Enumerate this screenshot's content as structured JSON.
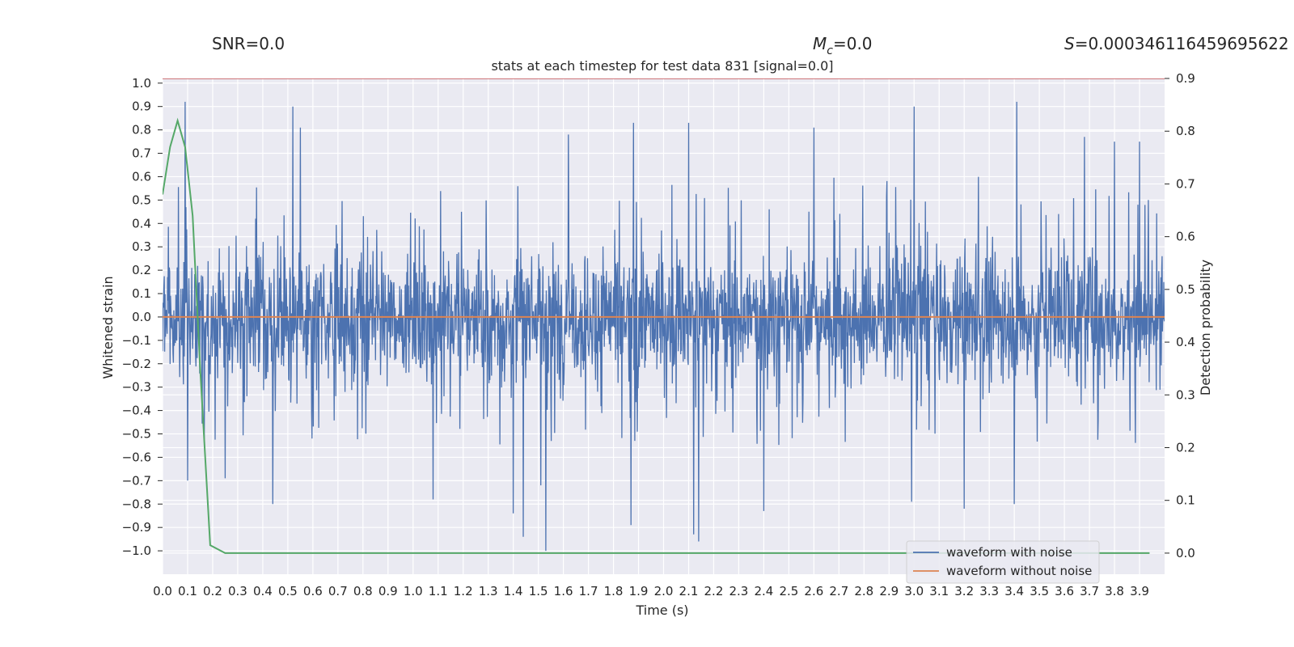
{
  "header": {
    "snr": "SNR=0.0",
    "mc_sym": "M",
    "mc_sub": "c",
    "mc_val": "=0.0",
    "s_sym": "S",
    "s_val": "=0.000346116459695622"
  },
  "chart_data": {
    "type": "line",
    "title": "stats at each timestep for test data 831 [signal=0.0]",
    "xlabel": "Time (s)",
    "ylabel": "Whitened strain",
    "y2label": "Detection probability",
    "xlim": [
      0.0,
      4.0
    ],
    "ylim": [
      -1.1,
      1.02
    ],
    "y2lim": [
      -0.04,
      0.9
    ],
    "xticks": [
      "0.0",
      "0.1",
      "0.2",
      "0.3",
      "0.4",
      "0.5",
      "0.6",
      "0.7",
      "0.8",
      "0.9",
      "1.0",
      "1.1",
      "1.2",
      "1.3",
      "1.4",
      "1.5",
      "1.6",
      "1.7",
      "1.8",
      "1.9",
      "2.0",
      "2.1",
      "2.2",
      "2.3",
      "2.4",
      "2.5",
      "2.6",
      "2.7",
      "2.8",
      "2.9",
      "3.0",
      "3.1",
      "3.2",
      "3.3",
      "3.4",
      "3.5",
      "3.6",
      "3.7",
      "3.8",
      "3.9"
    ],
    "yticks": [
      "1.0",
      "0.9",
      "0.8",
      "0.7",
      "0.6",
      "0.5",
      "0.4",
      "0.3",
      "0.2",
      "0.1",
      "0.0",
      "−0.1",
      "−0.2",
      "−0.3",
      "−0.4",
      "−0.5",
      "−0.6",
      "−0.7",
      "−0.8",
      "−0.9",
      "−1.0"
    ],
    "y2ticks": [
      "0.9",
      "0.8",
      "0.7",
      "0.6",
      "0.5",
      "0.4",
      "0.3",
      "0.2",
      "0.1",
      "0.0"
    ],
    "colors": {
      "noise": "#4c72b0",
      "clean": "#dd8452",
      "prob": "#55a868",
      "threshold": "#c44e52",
      "background": "#eaeaf2",
      "grid": "#ffffff"
    },
    "legend": {
      "placement": "lower-right",
      "items": [
        {
          "label": "waveform with noise",
          "color": "#4c72b0"
        },
        {
          "label": "waveform without noise",
          "color": "#dd8452"
        }
      ]
    },
    "series": [
      {
        "name": "waveform with noise",
        "kind": "noise",
        "x_range": [
          0.0,
          4.0
        ],
        "envelope": [
          0.6,
          -0.55
        ],
        "peaks": [
          {
            "x": 0.09,
            "y": 0.92
          },
          {
            "x": 0.52,
            "y": 0.9
          },
          {
            "x": 0.55,
            "y": 0.81
          },
          {
            "x": 1.62,
            "y": 0.78
          },
          {
            "x": 1.88,
            "y": 0.83
          },
          {
            "x": 2.1,
            "y": 0.83
          },
          {
            "x": 2.6,
            "y": 0.81
          },
          {
            "x": 3.0,
            "y": 0.9
          },
          {
            "x": 3.41,
            "y": 0.92
          },
          {
            "x": 3.68,
            "y": 0.77
          },
          {
            "x": 3.8,
            "y": 0.75
          },
          {
            "x": 3.9,
            "y": 0.75
          },
          {
            "x": 0.1,
            "y": -0.7
          },
          {
            "x": 0.25,
            "y": -0.69
          },
          {
            "x": 0.44,
            "y": -0.8
          },
          {
            "x": 1.08,
            "y": -0.78
          },
          {
            "x": 1.4,
            "y": -0.84
          },
          {
            "x": 1.44,
            "y": -0.94
          },
          {
            "x": 1.53,
            "y": -1.0
          },
          {
            "x": 1.51,
            "y": -0.72
          },
          {
            "x": 1.87,
            "y": -0.89
          },
          {
            "x": 2.12,
            "y": -0.93
          },
          {
            "x": 2.14,
            "y": -0.96
          },
          {
            "x": 2.4,
            "y": -0.83
          },
          {
            "x": 2.99,
            "y": -0.79
          },
          {
            "x": 3.2,
            "y": -0.82
          },
          {
            "x": 3.4,
            "y": -0.8
          }
        ]
      },
      {
        "name": "waveform without noise",
        "kind": "clean",
        "x": [
          0.0,
          4.0
        ],
        "y": [
          0.0,
          0.0
        ]
      },
      {
        "name": "Detection probability",
        "kind": "prob",
        "axis": "right",
        "x": [
          0.0,
          0.03,
          0.06,
          0.09,
          0.12,
          0.15,
          0.19,
          0.25,
          0.4,
          1.0,
          2.0,
          3.0,
          3.94
        ],
        "y": [
          0.68,
          0.77,
          0.82,
          0.77,
          0.64,
          0.35,
          0.015,
          0.0,
          0.0,
          0.0,
          0.0,
          0.0,
          0.0
        ]
      },
      {
        "name": "threshold",
        "kind": "threshold",
        "axis": "right",
        "x": [
          0.0,
          4.0
        ],
        "y": [
          0.9,
          0.9
        ]
      }
    ]
  }
}
